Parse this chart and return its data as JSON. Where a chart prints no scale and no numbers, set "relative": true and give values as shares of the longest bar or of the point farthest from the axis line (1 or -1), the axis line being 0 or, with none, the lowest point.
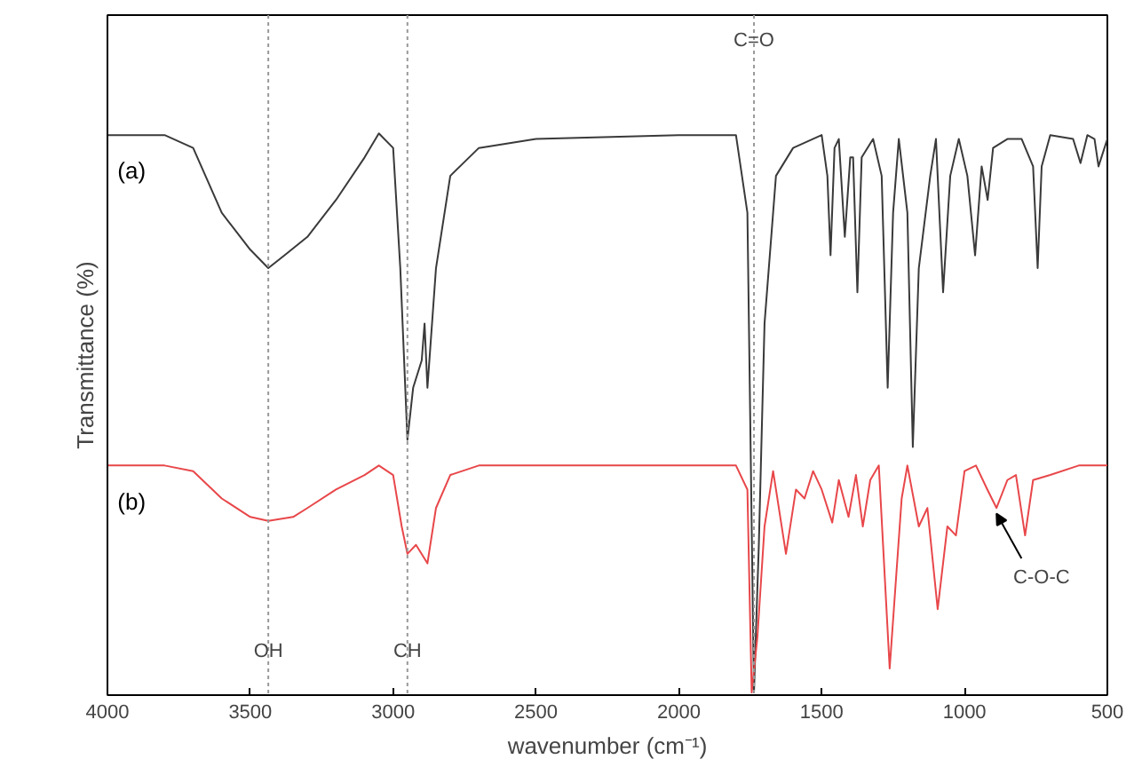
{
  "chart_data": {
    "type": "line",
    "xlabel": "wavenumber (cm⁻¹)",
    "ylabel": "Transmittance (%)",
    "relative": true,
    "xlim": [
      4000,
      500
    ],
    "xticks": [
      4000,
      3500,
      3000,
      2500,
      2000,
      1500,
      1000,
      500
    ],
    "grid": false,
    "series": [
      {
        "name": "(a)",
        "color": "#3a3a3a",
        "x": [
          4000,
          3800,
          3700,
          3600,
          3500,
          3437,
          3380,
          3300,
          3200,
          3100,
          3050,
          3000,
          2975,
          2950,
          2930,
          2900,
          2890,
          2880,
          2850,
          2800,
          2700,
          2500,
          2000,
          1800,
          1760,
          1737,
          1720,
          1700,
          1660,
          1600,
          1500,
          1480,
          1469,
          1455,
          1440,
          1419,
          1400,
          1390,
          1375,
          1360,
          1320,
          1290,
          1269,
          1250,
          1230,
          1200,
          1181,
          1160,
          1120,
          1100,
          1075,
          1050,
          1020,
          990,
          963,
          940,
          919,
          900,
          850,
          800,
          760,
          744,
          730,
          700,
          620,
          594,
          570,
          545,
          531,
          500
        ],
        "values": [
          0.997,
          0.997,
          0.974,
          0.858,
          0.792,
          0.759,
          0.782,
          0.815,
          0.881,
          0.957,
          1.0,
          0.974,
          0.759,
          0.452,
          0.545,
          0.594,
          0.66,
          0.545,
          0.759,
          0.924,
          0.974,
          0.99,
          0.997,
          0.997,
          0.858,
          0.0,
          0.264,
          0.66,
          0.924,
          0.974,
          0.997,
          0.924,
          0.782,
          0.974,
          0.99,
          0.815,
          0.957,
          0.957,
          0.716,
          0.957,
          0.99,
          0.924,
          0.545,
          0.858,
          0.99,
          0.858,
          0.439,
          0.759,
          0.924,
          0.99,
          0.716,
          0.924,
          0.99,
          0.924,
          0.782,
          0.941,
          0.881,
          0.974,
          0.99,
          0.99,
          0.941,
          0.759,
          0.941,
          0.997,
          0.99,
          0.947,
          0.997,
          0.99,
          0.941,
          0.99
        ]
      },
      {
        "name": "(b)",
        "color": "#e8474a",
        "x": [
          4000,
          3800,
          3700,
          3600,
          3500,
          3437,
          3350,
          3300,
          3200,
          3100,
          3050,
          3000,
          2970,
          2950,
          2920,
          2880,
          2850,
          2800,
          2700,
          2000,
          1800,
          1760,
          1745,
          1725,
          1700,
          1670,
          1625,
          1590,
          1560,
          1530,
          1500,
          1463,
          1440,
          1406,
          1380,
          1356,
          1330,
          1300,
          1262,
          1220,
          1200,
          1160,
          1130,
          1094,
          1060,
          1030,
          1000,
          960,
          920,
          888,
          850,
          820,
          788,
          760,
          700,
          600,
          500
        ],
        "values": [
          0.406,
          0.406,
          0.396,
          0.347,
          0.314,
          0.307,
          0.314,
          0.33,
          0.363,
          0.389,
          0.406,
          0.389,
          0.297,
          0.248,
          0.264,
          0.231,
          0.33,
          0.389,
          0.406,
          0.406,
          0.406,
          0.363,
          0.0,
          0.099,
          0.297,
          0.396,
          0.248,
          0.363,
          0.347,
          0.396,
          0.363,
          0.304,
          0.38,
          0.314,
          0.389,
          0.297,
          0.38,
          0.406,
          0.043,
          0.347,
          0.406,
          0.297,
          0.33,
          0.149,
          0.297,
          0.281,
          0.396,
          0.406,
          0.363,
          0.33,
          0.38,
          0.389,
          0.281,
          0.38,
          0.389,
          0.406,
          0.406
        ]
      }
    ],
    "ref_lines": [
      {
        "axis": "x",
        "value": 3437,
        "color": "#999999",
        "line_style": "dotted"
      },
      {
        "axis": "x",
        "value": 2950,
        "color": "#999999",
        "line_style": "dotted"
      },
      {
        "axis": "x",
        "value": 1737,
        "color": "#999999",
        "line_style": "dotted"
      }
    ],
    "annotations": [
      {
        "text": "OH",
        "x": 3437,
        "y": 0.073
      },
      {
        "text": "CH",
        "x": 2950,
        "y": 0.073
      },
      {
        "text": "C=O",
        "x": 1737,
        "y": 1.165
      },
      {
        "text": "C-O-C",
        "x": 888,
        "y": 0.33
      }
    ]
  }
}
